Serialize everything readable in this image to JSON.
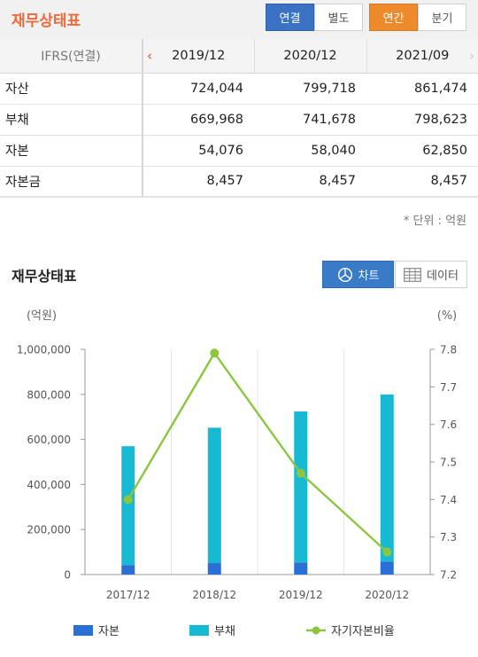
{
  "header": {
    "title": "재무상태표",
    "toggle_consolidation": [
      {
        "label": "연결",
        "active": true
      },
      {
        "label": "별도",
        "active": false
      }
    ],
    "toggle_period": [
      {
        "label": "연간",
        "active": true
      },
      {
        "label": "분기",
        "active": false
      }
    ]
  },
  "table": {
    "label_header": "IFRS(연결)",
    "prev_arrow": "‹",
    "next_arrow": "›",
    "periods": [
      "2019/12",
      "2020/12",
      "2021/09"
    ],
    "rows": [
      {
        "label": "자산",
        "values": [
          "724,044",
          "799,718",
          "861,474"
        ]
      },
      {
        "label": "부채",
        "values": [
          "669,968",
          "741,678",
          "798,623"
        ]
      },
      {
        "label": "자본",
        "values": [
          "54,076",
          "58,040",
          "62,850"
        ]
      },
      {
        "label": "자본금",
        "values": [
          "8,457",
          "8,457",
          "8,457"
        ]
      }
    ]
  },
  "unit_note": "* 단위 : 억원",
  "chart_section": {
    "title": "재무상태표",
    "chart_button": "차트",
    "data_button": "데이터"
  },
  "colors": {
    "brand_orange": "#ee6a3a",
    "equity": "#2a6fd6",
    "liability": "#17bad2",
    "ratio": "#8cc63f"
  },
  "chart_data": {
    "type": "bar",
    "stacked": true,
    "categories": [
      "2017/12",
      "2018/12",
      "2019/12",
      "2020/12"
    ],
    "y_left": {
      "unit_label": "(억원)",
      "range": [
        0,
        1000000
      ],
      "ticks": [
        "0",
        "200,000",
        "400,000",
        "600,000",
        "800,000",
        "1,000,000"
      ]
    },
    "y_right": {
      "unit_label": "(%)",
      "range": [
        7.2,
        7.8
      ],
      "ticks": [
        "7.2",
        "7.3",
        "7.4",
        "7.5",
        "7.6",
        "7.7",
        "7.8"
      ]
    },
    "series": [
      {
        "name": "자본",
        "type": "bar",
        "axis": "left",
        "color": "#2a6fd6",
        "values": [
          42000,
          51000,
          54076,
          58040
        ]
      },
      {
        "name": "부채",
        "type": "bar",
        "axis": "left",
        "color": "#17bad2",
        "values": [
          528000,
          601000,
          669968,
          741678
        ]
      },
      {
        "name": "자기자본비율",
        "type": "line",
        "axis": "right",
        "color": "#8cc63f",
        "values": [
          7.4,
          7.79,
          7.47,
          7.26
        ]
      }
    ],
    "grid": "vertical",
    "legend_position": "bottom"
  }
}
